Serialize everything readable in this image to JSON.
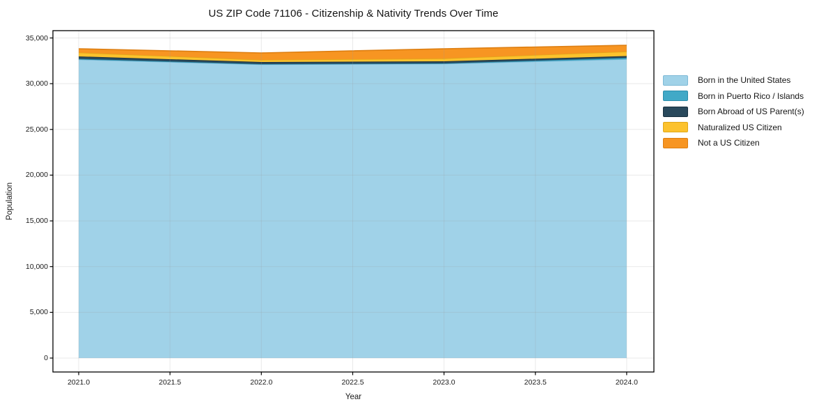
{
  "chart_data": {
    "type": "area",
    "stacked": true,
    "title": "US ZIP Code 71106 - Citizenship & Nativity Trends Over Time",
    "xlabel": "Year",
    "ylabel": "Population",
    "x": [
      2021,
      2022,
      2023,
      2024
    ],
    "series": [
      {
        "name": "Born in the United States",
        "color": "#a0d2e8",
        "edge": "#7db9d6",
        "values": [
          32640,
          32105,
          32180,
          32680
        ]
      },
      {
        "name": "Born in Puerto Rico / Islands",
        "color": "#41a9c7",
        "edge": "#2b8dab",
        "values": [
          75,
          40,
          40,
          150
        ]
      },
      {
        "name": "Born Abroad of US Parent(s)",
        "color": "#29495c",
        "edge": "#18303f",
        "values": [
          265,
          230,
          230,
          190
        ]
      },
      {
        "name": "Naturalized US Citizen",
        "color": "#fcc22d",
        "edge": "#e0a719",
        "values": [
          420,
          230,
          305,
          495
        ]
      },
      {
        "name": "Not a US Citizen",
        "color": "#f79522",
        "edge": "#dd7e11",
        "values": [
          420,
          760,
          1065,
          685
        ]
      }
    ],
    "xlim": [
      2020.859,
      2024.149
    ],
    "ylim": [
      -1523,
      35800
    ],
    "xticks": [
      2021.0,
      2021.5,
      2022.0,
      2022.5,
      2023.0,
      2023.5,
      2024.0
    ],
    "yticks": [
      0,
      5000,
      10000,
      15000,
      20000,
      25000,
      30000,
      35000
    ],
    "grid": true,
    "grid_color": "#9a9a9a",
    "axis_color": "#000000",
    "legend_position": "right",
    "legend_frame": false
  }
}
